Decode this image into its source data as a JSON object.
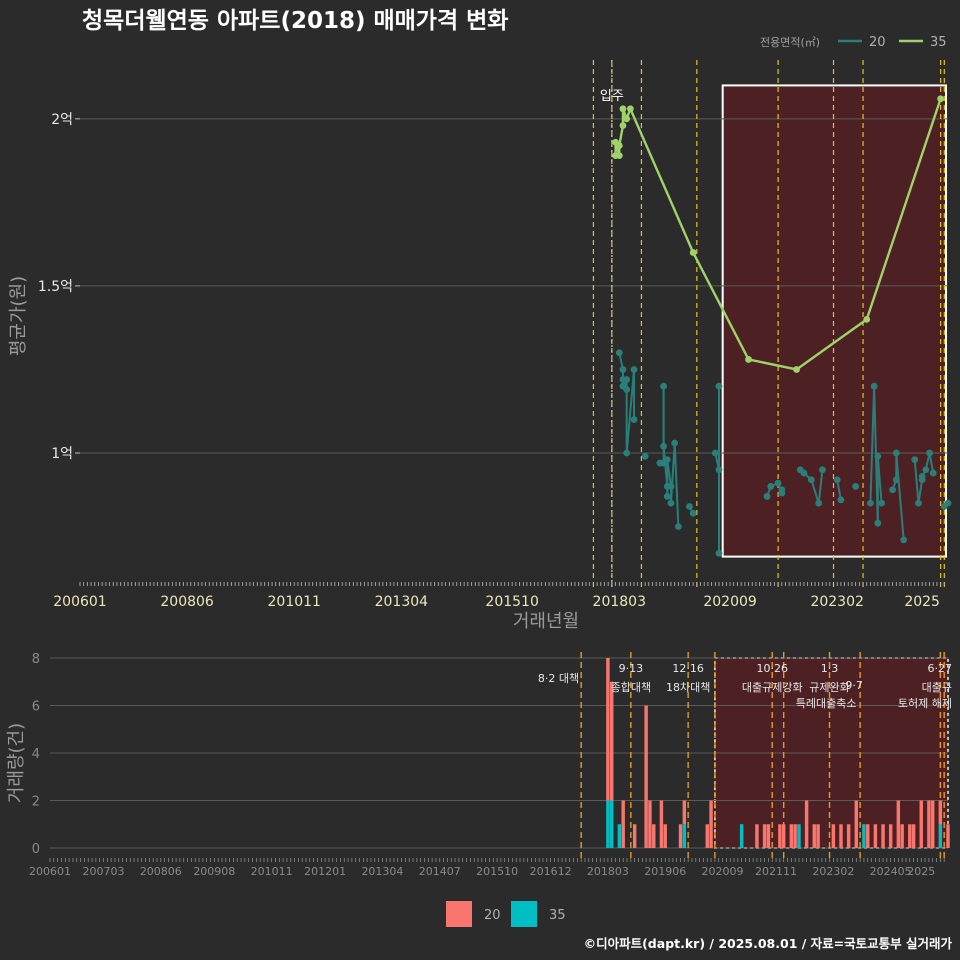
{
  "title": "청목더웰연동 아파트(2018) 매매가격 변화",
  "caption": "©디아파트(dapt.kr) / 2025.08.01 / 자료=국토교통부 실거래가",
  "colors": {
    "background": "#2b2b2b",
    "grid": "#5a5a5a",
    "s20": "#2a7f7a",
    "s35": "#9fd36a",
    "bar20": "#f8766d",
    "bar35": "#00bfc4",
    "policy_line": "#e6c21f",
    "policy_line_bottom": "#e69a1f",
    "highlight_fill": "#5a1f22",
    "highlight_border_top": "#ffffff",
    "highlight_border_bottom": "#cfcfcf"
  },
  "chart_data": [
    {
      "type": "line",
      "panel": "price",
      "xlabel": "거래년월",
      "ylabel": "평균가(원)",
      "ylim": [
        0.62,
        2.2
      ],
      "xlim": [
        "2006-01",
        "2025-08"
      ],
      "x_ticks": [
        "200601",
        "200806",
        "201011",
        "201304",
        "201510",
        "201803",
        "202009",
        "202302",
        "2025"
      ],
      "y_ticks": [
        {
          "value": 1.0,
          "label": "1억"
        },
        {
          "value": 1.5,
          "label": "1.5억"
        },
        {
          "value": 2.0,
          "label": "2억"
        }
      ],
      "grid": true,
      "legend_title": "전용면적(㎡)",
      "legend_position": "top-right",
      "annotation": {
        "label": "입주",
        "x": "2018-01"
      },
      "policy_lines": [
        "2017-08",
        "2018-01",
        "2018-09",
        "2019-12",
        "2021-10",
        "2023-01",
        "2023-09",
        "2025-06",
        "2025-07"
      ],
      "highlight": {
        "x_start": "2020-07",
        "x_end": "2025-08",
        "y_start": 0.69,
        "y_end": 2.1
      },
      "series": [
        {
          "name": "20",
          "points": [
            [
              "2018-03",
              1.3
            ],
            [
              "2018-04",
              1.25
            ],
            [
              "2018-04",
              1.22
            ],
            [
              "2018-04",
              1.2
            ],
            [
              "2018-05",
              1.22
            ],
            [
              "2018-05",
              1.19
            ],
            [
              "2018-05",
              1.0
            ],
            [
              "2018-07",
              1.25
            ],
            [
              "2018-07",
              1.1
            ],
            [
              "2018-10",
              0.99
            ],
            [
              "2019-02",
              0.97
            ],
            [
              "2019-03",
              0.97
            ],
            [
              "2019-03",
              1.2
            ],
            [
              "2019-03",
              1.02
            ],
            [
              "2019-04",
              0.9
            ],
            [
              "2019-04",
              0.87
            ],
            [
              "2019-04",
              0.98
            ],
            [
              "2019-05",
              0.9
            ],
            [
              "2019-05",
              0.85
            ],
            [
              "2019-06",
              1.03
            ],
            [
              "2019-07",
              0.78
            ],
            [
              "2019-10",
              0.84
            ],
            [
              "2019-11",
              0.82
            ],
            [
              "2020-05",
              1.0
            ],
            [
              "2020-06",
              0.95
            ],
            [
              "2020-06",
              1.2
            ],
            [
              "2020-06",
              0.7
            ],
            [
              "2021-07",
              0.87
            ],
            [
              "2021-08",
              0.9
            ],
            [
              "2021-10",
              0.91
            ],
            [
              "2021-11",
              0.88
            ],
            [
              "2021-11",
              0.89
            ],
            [
              "2022-04",
              0.95
            ],
            [
              "2022-05",
              0.94
            ],
            [
              "2022-07",
              0.92
            ],
            [
              "2022-09",
              0.85
            ],
            [
              "2022-10",
              0.95
            ],
            [
              "2023-02",
              0.92
            ],
            [
              "2023-03",
              0.86
            ],
            [
              "2023-07",
              0.9
            ],
            [
              "2023-11",
              0.85
            ],
            [
              "2023-12",
              1.2
            ],
            [
              "2024-01",
              0.79
            ],
            [
              "2024-01",
              0.99
            ],
            [
              "2024-02",
              0.85
            ],
            [
              "2024-05",
              0.89
            ],
            [
              "2024-06",
              0.92
            ],
            [
              "2024-06",
              1.0
            ],
            [
              "2024-08",
              0.74
            ],
            [
              "2024-11",
              0.98
            ],
            [
              "2024-12",
              0.85
            ],
            [
              "2025-01",
              0.92
            ],
            [
              "2025-01",
              0.93
            ],
            [
              "2025-02",
              0.95
            ],
            [
              "2025-03",
              1.0
            ],
            [
              "2025-04",
              0.94
            ],
            [
              "2025-07",
              0.84
            ],
            [
              "2025-08",
              0.85
            ]
          ]
        },
        {
          "name": "35",
          "points": [
            [
              "2018-02",
              1.89
            ],
            [
              "2018-02",
              1.93
            ],
            [
              "2018-03",
              1.89
            ],
            [
              "2018-03",
              1.92
            ],
            [
              "2018-04",
              1.98
            ],
            [
              "2018-04",
              2.03
            ],
            [
              "2018-05",
              2.0
            ],
            [
              "2018-06",
              2.03
            ],
            [
              "2019-11",
              1.6
            ],
            [
              "2021-02",
              1.28
            ],
            [
              "2022-03",
              1.25
            ],
            [
              "2023-10",
              1.4
            ],
            [
              "2025-06",
              2.06
            ]
          ]
        }
      ]
    },
    {
      "type": "bar",
      "panel": "volume",
      "xlabel": "",
      "ylabel": "거래량(건)",
      "ylim": [
        0,
        8
      ],
      "y_ticks": [
        0,
        2,
        4,
        6,
        8
      ],
      "x_ticks": [
        "200601",
        "200703",
        "200806",
        "200908",
        "201011",
        "201201",
        "201304",
        "201407",
        "201510",
        "201612",
        "201803",
        "201906",
        "202009",
        "202111",
        "202302",
        "202405",
        "2025"
      ],
      "highlight": {
        "x_start": "2020-07",
        "x_end": "2025-08"
      },
      "policy_lines": [
        "2017-08",
        "2018-09",
        "2019-12",
        "2020-07",
        "2021-10",
        "2022-01",
        "2023-01",
        "2023-09",
        "2025-06",
        "2025-07"
      ],
      "policies": [
        {
          "x": "2017-08",
          "date": "8·2",
          "label": "대책"
        },
        {
          "x": "2018-09",
          "date": "9·13",
          "label": "종합대책"
        },
        {
          "x": "2019-12",
          "date": "12·16",
          "label": "18차대책"
        },
        {
          "x": "2021-10",
          "date": "10·26",
          "label": "대출규제강화"
        },
        {
          "x": "2023-01",
          "date": "1·3",
          "label": "규제완화"
        },
        {
          "x": "2023-09",
          "date": "9·7",
          "label": "특례대출축소"
        },
        {
          "x": "2025-06",
          "date": "6·27",
          "label": "대출규"
        }
      ],
      "extra_policy_labels": [
        "토허제 해제"
      ],
      "series": [
        {
          "name": "20",
          "bars": [
            [
              "2018-03",
              8
            ],
            [
              "2018-04",
              5
            ],
            [
              "2018-07",
              2
            ],
            [
              "2018-10",
              1
            ],
            [
              "2019-01",
              6
            ],
            [
              "2019-02",
              2
            ],
            [
              "2019-03",
              1
            ],
            [
              "2019-05",
              2
            ],
            [
              "2019-06",
              1
            ],
            [
              "2019-10",
              1
            ],
            [
              "2019-11",
              1
            ],
            [
              "2020-05",
              1
            ],
            [
              "2020-06",
              2
            ],
            [
              "2021-06",
              1
            ],
            [
              "2021-08",
              1
            ],
            [
              "2021-09",
              1
            ],
            [
              "2021-12",
              1
            ],
            [
              "2022-01",
              1
            ],
            [
              "2022-03",
              1
            ],
            [
              "2022-04",
              1
            ],
            [
              "2022-07",
              2
            ],
            [
              "2022-09",
              1
            ],
            [
              "2022-10",
              1
            ],
            [
              "2023-02",
              1
            ],
            [
              "2023-04",
              1
            ],
            [
              "2023-06",
              1
            ],
            [
              "2023-08",
              2
            ],
            [
              "2023-11",
              1
            ],
            [
              "2024-01",
              1
            ],
            [
              "2024-03",
              1
            ],
            [
              "2024-05",
              1
            ],
            [
              "2024-07",
              2
            ],
            [
              "2024-08",
              1
            ],
            [
              "2024-10",
              1
            ],
            [
              "2024-11",
              1
            ],
            [
              "2025-01",
              2
            ],
            [
              "2025-03",
              2
            ],
            [
              "2025-04",
              2
            ],
            [
              "2025-06",
              1
            ],
            [
              "2025-08",
              1
            ]
          ]
        },
        {
          "name": "35",
          "bars": [
            [
              "2018-03",
              2
            ],
            [
              "2018-04",
              2
            ],
            [
              "2018-06",
              1
            ],
            [
              "2019-11",
              1
            ],
            [
              "2021-02",
              1
            ],
            [
              "2022-05",
              1
            ],
            [
              "2023-10",
              1
            ],
            [
              "2025-06",
              1
            ]
          ]
        }
      ]
    }
  ],
  "bottom_legend": {
    "items": [
      {
        "label": "20",
        "color": "#f8766d"
      },
      {
        "label": "35",
        "color": "#00bfc4"
      }
    ]
  }
}
